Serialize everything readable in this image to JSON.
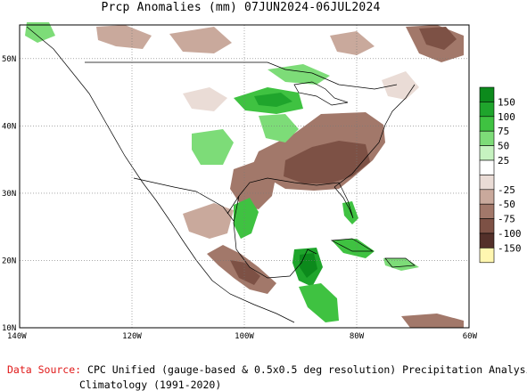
{
  "title": "Prcp Anomalies (mm) 07JUN2024-06JUL2024",
  "map": {
    "lat_labels": [
      "50N",
      "40N",
      "30N",
      "20N",
      "10N"
    ],
    "lon_labels": [
      "140W",
      "120W",
      "100W",
      "80W",
      "60W"
    ],
    "lat_values": [
      50,
      40,
      30,
      20,
      10
    ],
    "lon_values": [
      -140,
      -120,
      -100,
      -80,
      -60
    ]
  },
  "legend": {
    "items": [
      {
        "label": "150",
        "color": "#0c8a1c"
      },
      {
        "label": "100",
        "color": "#1fa52c"
      },
      {
        "label": "75",
        "color": "#3fc241"
      },
      {
        "label": "50",
        "color": "#7ddc78"
      },
      {
        "label": "25",
        "color": "#c6f2c0"
      },
      {
        "label": "",
        "color": "#ffffff"
      },
      {
        "label": "-25",
        "color": "#eadcd6"
      },
      {
        "label": "-50",
        "color": "#c9a99c"
      },
      {
        "label": "-75",
        "color": "#a2786a"
      },
      {
        "label": "-100",
        "color": "#7d5145"
      },
      {
        "label": "-150",
        "color": "#53302a"
      },
      {
        "label": "",
        "color": "#fff6b0"
      }
    ]
  },
  "footer": {
    "source_label": "Data Source:",
    "source_text": "CPC Unified (gauge-based & 0.5x0.5 deg resolution) Precipitation Analysis",
    "climatology": "Climatology (1991-2020)"
  }
}
